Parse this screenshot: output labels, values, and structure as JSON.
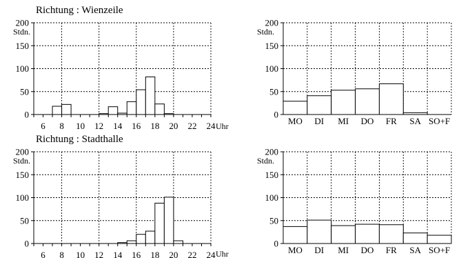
{
  "chart_data": [
    {
      "id": "wienzeile-hourly",
      "type": "bar",
      "title": "Richtung : Wienzeile",
      "ylabel": "Stdn.",
      "x_unit": "Uhr",
      "x_ticks": [
        "6",
        "8",
        "10",
        "12",
        "14",
        "16",
        "18",
        "20",
        "22",
        "24"
      ],
      "y_ticks": [
        "0",
        "50",
        "100",
        "150",
        "200"
      ],
      "ylim": [
        0,
        200
      ],
      "xlim": [
        5,
        24
      ],
      "grid": true,
      "bins": [
        {
          "hour": 7,
          "value": 18
        },
        {
          "hour": 8,
          "value": 22
        },
        {
          "hour": 12,
          "value": 2
        },
        {
          "hour": 13,
          "value": 17
        },
        {
          "hour": 14,
          "value": 3
        },
        {
          "hour": 15,
          "value": 28
        },
        {
          "hour": 16,
          "value": 54
        },
        {
          "hour": 17,
          "value": 82
        },
        {
          "hour": 18,
          "value": 23
        },
        {
          "hour": 19,
          "value": 2
        }
      ]
    },
    {
      "id": "wienzeile-weekday",
      "type": "bar",
      "ylabel": "Stdn.",
      "categories": [
        "MO",
        "DI",
        "MI",
        "DO",
        "FR",
        "SA",
        "SO+F"
      ],
      "values": [
        29,
        41,
        53,
        56,
        67,
        4,
        0
      ],
      "y_ticks": [
        "0",
        "50",
        "100",
        "150",
        "200"
      ],
      "ylim": [
        0,
        200
      ],
      "grid": true
    },
    {
      "id": "stadthalle-hourly",
      "type": "bar",
      "title": "Richtung : Stadthalle",
      "ylabel": "Stdn.",
      "x_unit": "Uhr",
      "x_ticks": [
        "6",
        "8",
        "10",
        "12",
        "14",
        "16",
        "18",
        "20",
        "22",
        "24"
      ],
      "y_ticks": [
        "0",
        "50",
        "100",
        "150",
        "200"
      ],
      "ylim": [
        0,
        200
      ],
      "xlim": [
        5,
        24
      ],
      "grid": true,
      "bins": [
        {
          "hour": 14,
          "value": 2
        },
        {
          "hour": 15,
          "value": 6
        },
        {
          "hour": 16,
          "value": 20
        },
        {
          "hour": 17,
          "value": 27
        },
        {
          "hour": 18,
          "value": 88
        },
        {
          "hour": 19,
          "value": 101
        },
        {
          "hour": 20,
          "value": 6
        }
      ]
    },
    {
      "id": "stadthalle-weekday",
      "type": "bar",
      "ylabel": "Stdn.",
      "categories": [
        "MO",
        "DI",
        "MI",
        "DO",
        "FR",
        "SA",
        "SO+F"
      ],
      "values": [
        37,
        51,
        39,
        42,
        41,
        23,
        18
      ],
      "y_ticks": [
        "0",
        "50",
        "100",
        "150",
        "200"
      ],
      "ylim": [
        0,
        200
      ],
      "grid": true
    }
  ]
}
